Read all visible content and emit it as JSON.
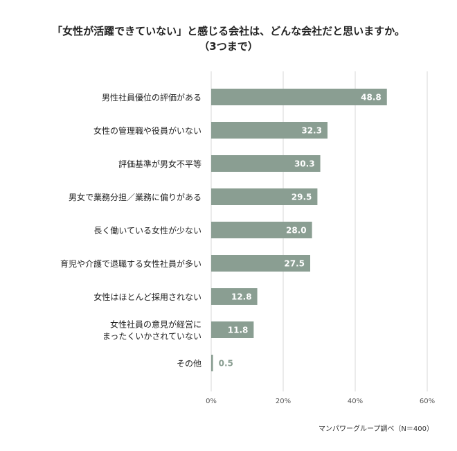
{
  "title": "「女性が活躍できていない」と感じる会社は、どんな会社だと思いますか。",
  "subtitle": "（3つまで）",
  "source": "マンパワーグループ調べ（N＝400）",
  "colors": {
    "bar": "#8a9e92",
    "grid": "#d7d7d7",
    "label_inside": "#ffffff",
    "label_outside": "#8a9e92"
  },
  "chart_data": {
    "type": "bar",
    "orientation": "horizontal",
    "categories": [
      "男性社員優位の評価がある",
      "女性の管理職や役員がいない",
      "評価基準が男女不平等",
      "男女で業務分担／業務に偏りがある",
      "長く働いている女性が少ない",
      "育児や介護で退職する女性社員が多い",
      "女性はほとんど採用されない",
      "女性社員の意見が経営に\nまったくいかされていない",
      "その他"
    ],
    "values": [
      48.8,
      32.3,
      30.3,
      29.5,
      28.0,
      27.5,
      12.8,
      11.8,
      0.5
    ],
    "value_labels": [
      "48.8",
      "32.3",
      "30.3",
      "29.5",
      "28.0",
      "27.5",
      "12.8",
      "11.8",
      "0.5"
    ],
    "xlim": [
      0,
      60
    ],
    "xticks": [
      0,
      20,
      40,
      60
    ],
    "xtick_labels": [
      "0%",
      "20%",
      "40%",
      "60%"
    ],
    "grid": true
  }
}
